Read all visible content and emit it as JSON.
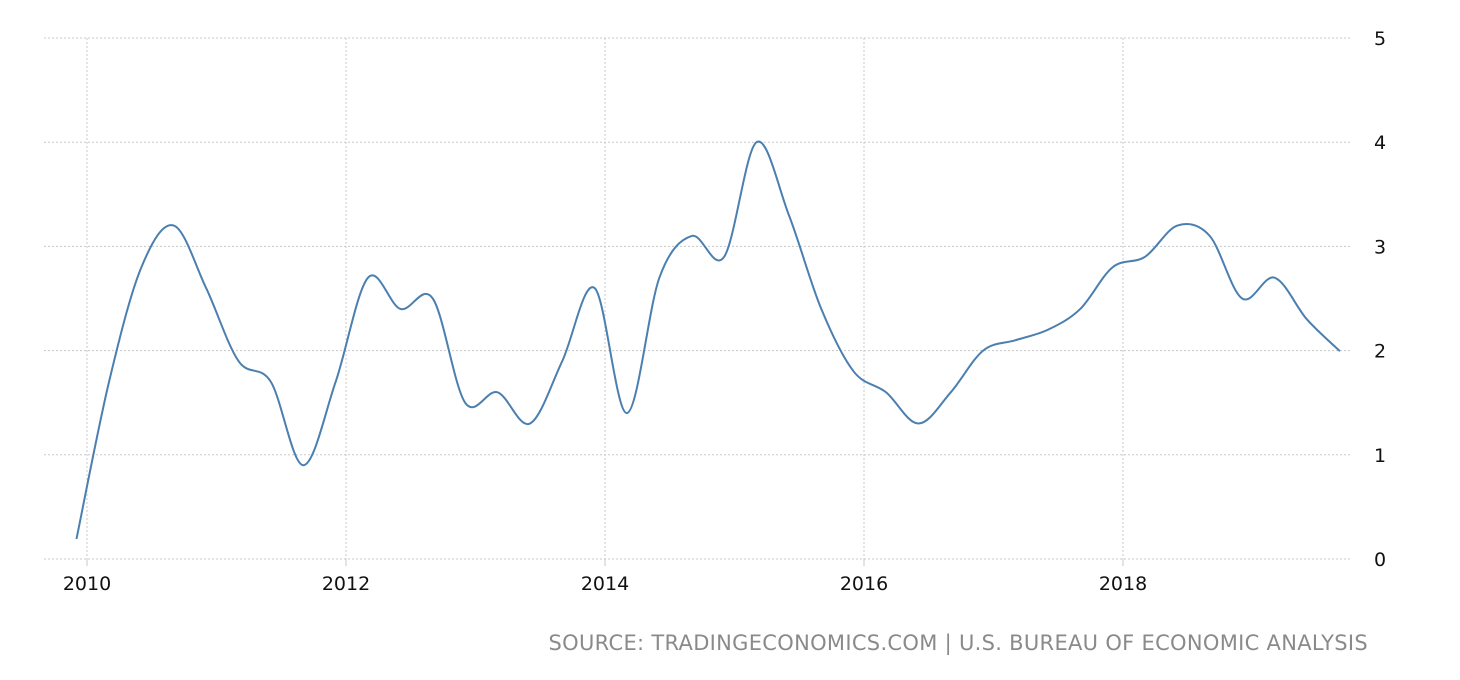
{
  "chart_data": {
    "type": "line",
    "title": "",
    "xlabel": "",
    "ylabel": "",
    "xlim": [
      2010,
      2019.73
    ],
    "ylim": [
      0,
      5
    ],
    "grid": true,
    "y_axis_position": "right",
    "x_ticks": [
      "2010",
      "2012",
      "2014",
      "2016",
      "2018"
    ],
    "y_ticks": [
      "0",
      "1",
      "2",
      "3",
      "4",
      "5"
    ],
    "line_color": "#4a7fb0",
    "series": [
      {
        "x": [
          2009.92,
          2010.17,
          2010.42,
          2010.67,
          2010.92,
          2011.17,
          2011.42,
          2011.67,
          2011.92,
          2012.17,
          2012.42,
          2012.67,
          2012.92,
          2013.17,
          2013.42,
          2013.67,
          2013.92,
          2014.17,
          2014.42,
          2014.67,
          2014.92,
          2015.17,
          2015.42,
          2015.67,
          2015.92,
          2016.17,
          2016.42,
          2016.67,
          2016.92,
          2017.17,
          2017.42,
          2017.67,
          2017.92,
          2018.17,
          2018.42,
          2018.67,
          2018.92,
          2019.17,
          2019.42,
          2019.67
        ],
        "y": [
          0.2,
          1.7,
          2.8,
          3.2,
          2.6,
          1.9,
          1.7,
          0.9,
          1.7,
          2.7,
          2.4,
          2.5,
          1.5,
          1.6,
          1.3,
          1.9,
          2.6,
          1.4,
          2.7,
          3.1,
          2.9,
          4.0,
          3.3,
          2.4,
          1.8,
          1.6,
          1.3,
          1.6,
          2.0,
          2.1,
          2.2,
          2.4,
          2.8,
          2.9,
          3.2,
          3.1,
          2.5,
          2.7,
          2.3,
          2.0
        ]
      }
    ]
  },
  "source_text": "SOURCE: TRADINGECONOMICS.COM | U.S. BUREAU OF ECONOMIC ANALYSIS"
}
